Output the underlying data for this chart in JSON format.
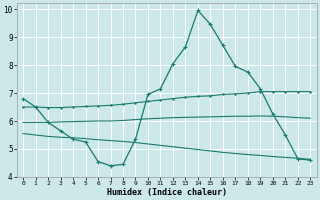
{
  "xlabel": "Humidex (Indice chaleur)",
  "xlim": [
    -0.5,
    23.5
  ],
  "ylim": [
    4,
    10.2
  ],
  "yticks": [
    4,
    5,
    6,
    7,
    8,
    9,
    10
  ],
  "xticks": [
    0,
    1,
    2,
    3,
    4,
    5,
    6,
    7,
    8,
    9,
    10,
    11,
    12,
    13,
    14,
    15,
    16,
    17,
    18,
    19,
    20,
    21,
    22,
    23
  ],
  "bg_color": "#cce8e8",
  "grid_color": "#ffffff",
  "line_color": "#1a7a6e",
  "line1_x": [
    0,
    1,
    2,
    3,
    4,
    5,
    6,
    7,
    8,
    9,
    10,
    11,
    12,
    13,
    14,
    15,
    16,
    17,
    18,
    19,
    20,
    21,
    22,
    23
  ],
  "line1_y": [
    6.8,
    6.5,
    5.95,
    5.65,
    5.35,
    5.25,
    4.55,
    4.4,
    4.45,
    5.35,
    6.95,
    7.15,
    8.05,
    8.65,
    9.95,
    9.45,
    8.7,
    7.95,
    7.75,
    7.15,
    6.25,
    5.5,
    4.65,
    4.6
  ],
  "line2_x": [
    0,
    1,
    2,
    3,
    4,
    5,
    6,
    7,
    8,
    9,
    10,
    11,
    12,
    13,
    14,
    15,
    16,
    17,
    18,
    19,
    20,
    21,
    22,
    23
  ],
  "line2_y": [
    6.5,
    6.5,
    6.48,
    6.48,
    6.5,
    6.52,
    6.54,
    6.56,
    6.6,
    6.65,
    6.7,
    6.75,
    6.8,
    6.85,
    6.88,
    6.9,
    6.95,
    6.97,
    7.0,
    7.05,
    7.05,
    7.05,
    7.05,
    7.05
  ],
  "line3_x": [
    0,
    1,
    2,
    3,
    4,
    5,
    6,
    7,
    8,
    9,
    10,
    11,
    12,
    13,
    14,
    15,
    16,
    17,
    18,
    19,
    20,
    21,
    22,
    23
  ],
  "line3_y": [
    5.95,
    5.95,
    5.95,
    5.97,
    5.98,
    5.99,
    6.0,
    6.0,
    6.02,
    6.05,
    6.08,
    6.1,
    6.12,
    6.13,
    6.14,
    6.15,
    6.16,
    6.17,
    6.17,
    6.18,
    6.17,
    6.15,
    6.12,
    6.1
  ],
  "line4_x": [
    0,
    1,
    2,
    3,
    4,
    5,
    6,
    7,
    8,
    9,
    10,
    11,
    12,
    13,
    14,
    15,
    16,
    17,
    18,
    19,
    20,
    21,
    22,
    23
  ],
  "line4_y": [
    5.55,
    5.5,
    5.45,
    5.42,
    5.4,
    5.37,
    5.33,
    5.3,
    5.27,
    5.23,
    5.18,
    5.13,
    5.08,
    5.03,
    4.98,
    4.93,
    4.88,
    4.84,
    4.8,
    4.77,
    4.73,
    4.7,
    4.67,
    4.63
  ]
}
